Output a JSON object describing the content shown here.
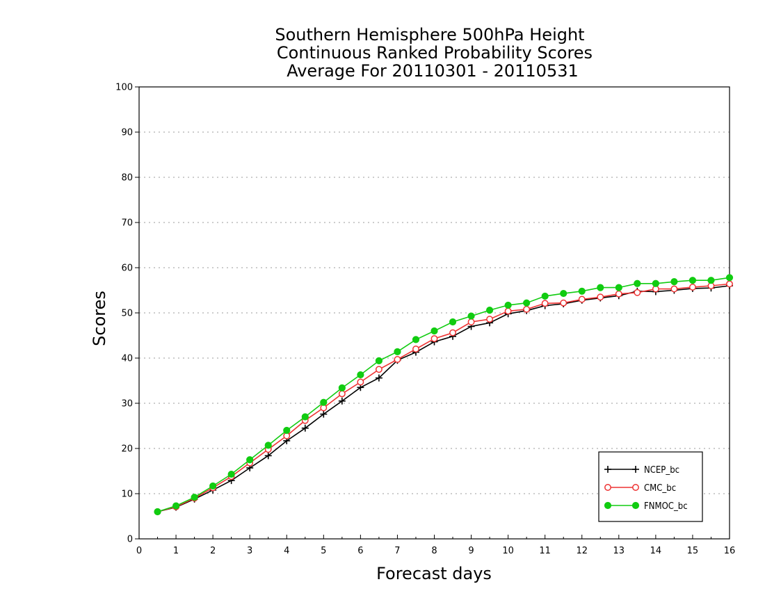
{
  "chart_data": {
    "type": "line",
    "title": [
      "Southern Hemisphere 500hPa Height",
      "Continuous Ranked Probability Scores",
      "Average For 20110301 - 20110531"
    ],
    "xlabel": "Forecast days",
    "ylabel": "Scores",
    "xlim": [
      0,
      16
    ],
    "ylim": [
      0,
      100
    ],
    "xticks": [
      "0",
      "1",
      "2",
      "3",
      "4",
      "5",
      "6",
      "7",
      "8",
      "9",
      "10",
      "11",
      "12",
      "13",
      "14",
      "15",
      "16"
    ],
    "yticks": [
      "0",
      "10",
      "20",
      "30",
      "40",
      "50",
      "60",
      "70",
      "80",
      "90",
      "100"
    ],
    "grid": "horizontal dotted",
    "legend_position": "bottom-right",
    "x": [
      0.5,
      1,
      1.5,
      2,
      2.5,
      3,
      3.5,
      4,
      4.5,
      5,
      5.5,
      6,
      6.5,
      7,
      7.5,
      8,
      8.5,
      9,
      9.5,
      10,
      10.5,
      11,
      11.5,
      12,
      12.5,
      13,
      13.5,
      14,
      14.5,
      15,
      15.5,
      16
    ],
    "series": [
      {
        "name": "NCEP_bc",
        "color": "#000000",
        "marker": "plus",
        "values": [
          6.0,
          7.0,
          8.8,
          10.8,
          12.9,
          15.7,
          18.4,
          21.7,
          24.5,
          27.6,
          30.5,
          33.5,
          35.6,
          39.5,
          41.3,
          43.6,
          44.8,
          47.0,
          47.8,
          49.8,
          50.5,
          51.6,
          52.0,
          52.8,
          53.3,
          53.8,
          54.8,
          54.7,
          55.0,
          55.4,
          55.5,
          56.0
        ]
      },
      {
        "name": "CMC_bc",
        "color": "#ee3333",
        "marker": "open-circle",
        "values": [
          6.0,
          7.1,
          9.0,
          11.3,
          13.8,
          16.8,
          19.8,
          22.8,
          26.2,
          29.0,
          32.1,
          34.7,
          37.5,
          39.7,
          42.0,
          44.3,
          45.6,
          48.0,
          48.6,
          50.4,
          50.8,
          52.1,
          52.2,
          53.0,
          53.5,
          54.2,
          54.5,
          55.3,
          55.3,
          55.7,
          56.0,
          56.4
        ]
      },
      {
        "name": "FNMOC_bc",
        "color": "#11cc11",
        "marker": "filled-circle",
        "values": [
          6.0,
          7.3,
          9.2,
          11.7,
          14.3,
          17.5,
          20.7,
          24.0,
          27.0,
          30.2,
          33.4,
          36.3,
          39.4,
          41.4,
          44.1,
          46.0,
          48.0,
          49.3,
          50.6,
          51.7,
          52.2,
          53.7,
          54.3,
          54.8,
          55.6,
          55.6,
          56.5,
          56.5,
          56.9,
          57.2,
          57.2,
          57.8
        ]
      }
    ]
  }
}
